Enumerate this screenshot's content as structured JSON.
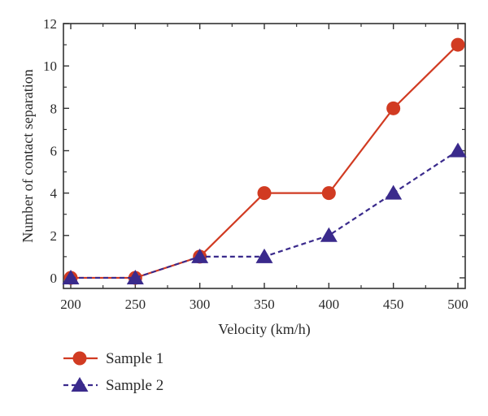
{
  "chart_data": {
    "type": "line",
    "title": "",
    "xlabel": "Velocity (km/h)",
    "ylabel": "Number of contact separation",
    "x": [
      200,
      250,
      300,
      350,
      400,
      450,
      500
    ],
    "xlim": [
      200,
      500
    ],
    "ylim": [
      -0.5,
      12
    ],
    "xticks": [
      200,
      250,
      300,
      350,
      400,
      450,
      500
    ],
    "yticks": [
      0,
      2,
      4,
      6,
      8,
      10,
      12
    ],
    "grid": false,
    "legend_position": "bottom-left, below plot",
    "series": [
      {
        "name": "Sample 1",
        "values": [
          0,
          0,
          1,
          4,
          4,
          8,
          11
        ],
        "color": "#d13b22",
        "marker": "circle",
        "line": "solid"
      },
      {
        "name": "Sample 2",
        "values": [
          0,
          0,
          1,
          1,
          2,
          4,
          6
        ],
        "color": "#3a2a8c",
        "marker": "triangle",
        "line": "dashed"
      }
    ]
  }
}
